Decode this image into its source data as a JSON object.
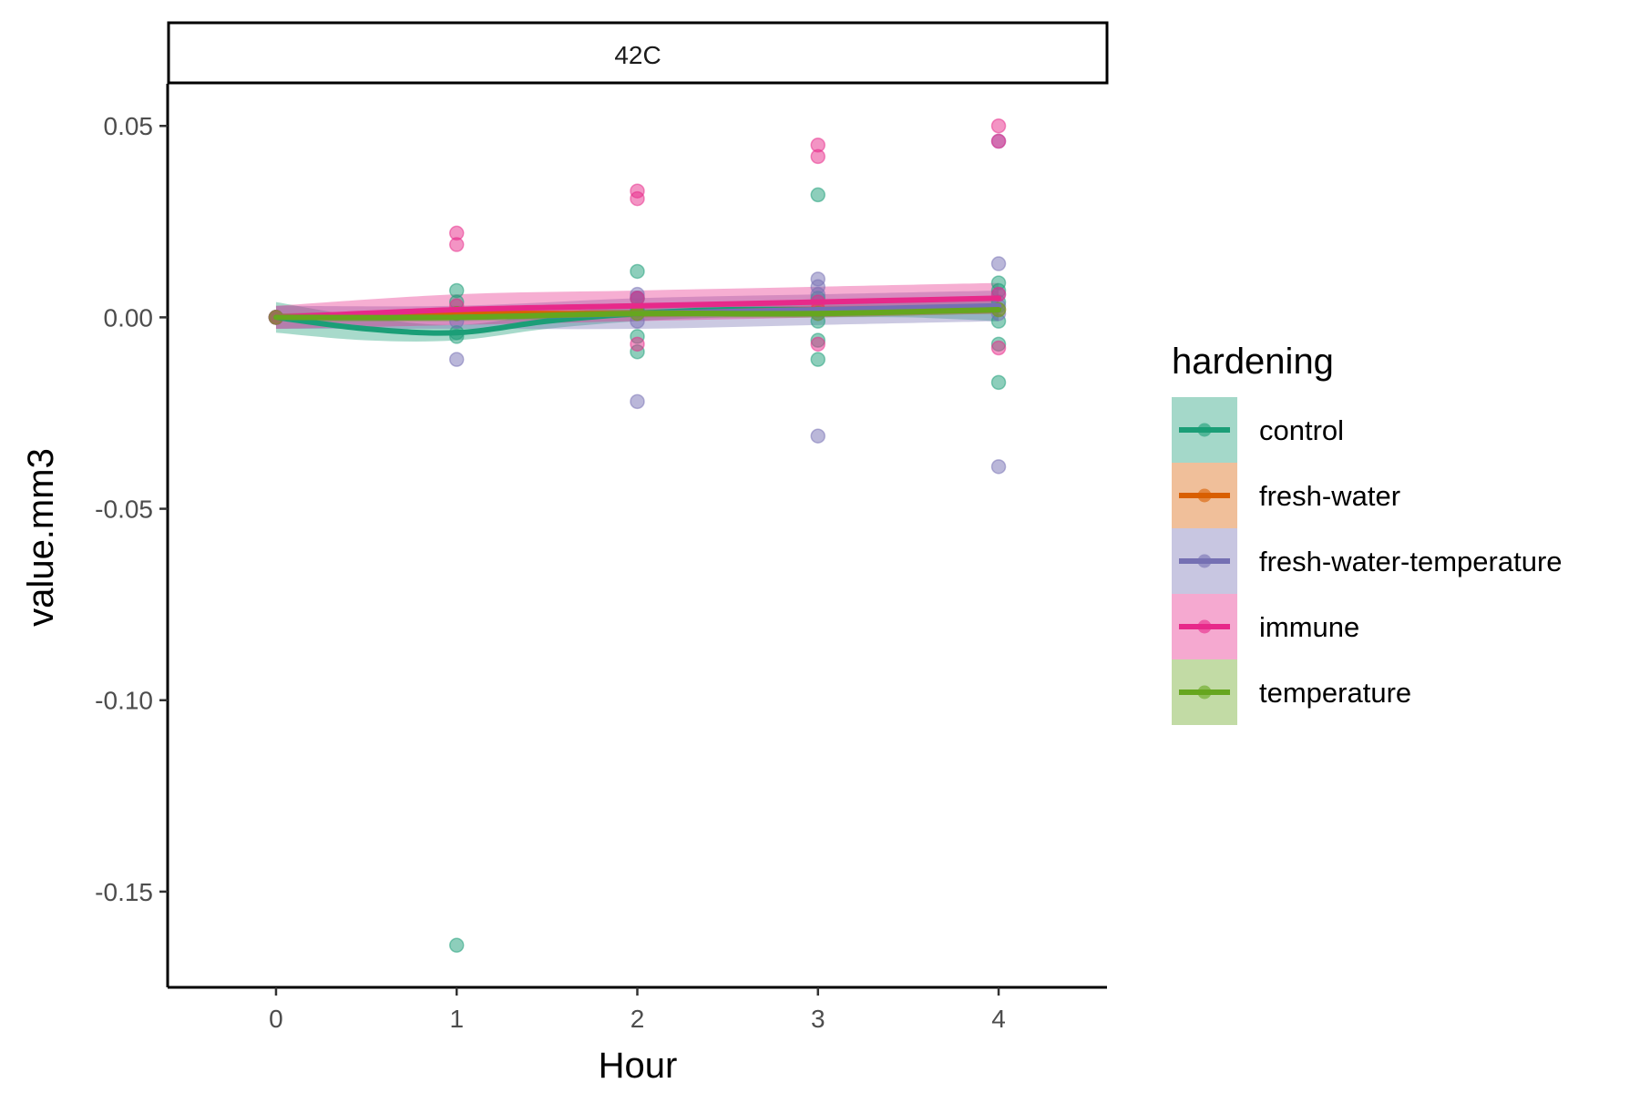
{
  "chart_data": {
    "type": "scatter",
    "facet_label": "42C",
    "xlabel": "Hour",
    "ylabel": "value.mm3",
    "xlim": [
      -0.6,
      4.6
    ],
    "ylim": [
      -0.175,
      0.061
    ],
    "x_ticks": [
      0,
      1,
      2,
      3,
      4
    ],
    "x_tick_labels": [
      "0",
      "1",
      "2",
      "3",
      "4"
    ],
    "y_ticks": [
      0.05,
      0.0,
      -0.05,
      -0.1,
      -0.15
    ],
    "y_tick_labels": [
      "0.05",
      "0.00",
      "-0.05",
      "-0.10",
      "-0.15"
    ],
    "grid": false,
    "legend": {
      "title": "hardening",
      "placement": "right"
    },
    "series": [
      {
        "name": "control",
        "color": "#1B9E77",
        "points": [
          [
            0,
            0.0
          ],
          [
            0,
            0.0
          ],
          [
            0,
            0.0
          ],
          [
            0,
            0.0
          ],
          [
            1,
            0.007
          ],
          [
            1,
            -0.004
          ],
          [
            1,
            -0.005
          ],
          [
            1,
            0.004
          ],
          [
            1,
            -0.164
          ],
          [
            2,
            0.012
          ],
          [
            2,
            -0.005
          ],
          [
            2,
            -0.009
          ],
          [
            2,
            0.005
          ],
          [
            2,
            0.002
          ],
          [
            3,
            0.032
          ],
          [
            3,
            -0.006
          ],
          [
            3,
            -0.011
          ],
          [
            3,
            -0.001
          ],
          [
            3,
            0.005
          ],
          [
            4,
            0.009
          ],
          [
            4,
            0.007
          ],
          [
            4,
            -0.007
          ],
          [
            4,
            -0.017
          ],
          [
            4,
            -0.001
          ],
          [
            4,
            0.004
          ]
        ],
        "smooth": [
          [
            0,
            0.0
          ],
          [
            0.5,
            -0.003
          ],
          [
            1,
            -0.004
          ],
          [
            1.5,
            -0.001
          ],
          [
            2,
            0.001
          ],
          [
            2.5,
            0.002
          ],
          [
            3,
            0.002
          ],
          [
            3.5,
            0.002
          ],
          [
            4,
            0.002
          ]
        ],
        "band_halfwidth": [
          0.004,
          0.003,
          0.002,
          0.002,
          0.002,
          0.002,
          0.002,
          0.002,
          0.003
        ]
      },
      {
        "name": "fresh-water",
        "color": "#D95F02",
        "points": [
          [
            0,
            0.0
          ],
          [
            1,
            0.001
          ],
          [
            2,
            0.001
          ],
          [
            3,
            0.002
          ],
          [
            4,
            0.002
          ]
        ],
        "smooth": [
          [
            0,
            0.0
          ],
          [
            1,
            0.001
          ],
          [
            2,
            0.001
          ],
          [
            3,
            0.002
          ],
          [
            4,
            0.002
          ]
        ],
        "band_halfwidth": [
          0.001,
          0.001,
          0.001,
          0.001,
          0.001
        ]
      },
      {
        "name": "fresh-water-temperature",
        "color": "#7570B3",
        "points": [
          [
            0,
            0.0
          ],
          [
            0,
            0.0
          ],
          [
            0,
            0.0
          ],
          [
            1,
            -0.011
          ],
          [
            1,
            0.001
          ],
          [
            1,
            -0.001
          ],
          [
            2,
            -0.022
          ],
          [
            2,
            0.006
          ],
          [
            2,
            -0.001
          ],
          [
            2,
            0.005
          ],
          [
            3,
            -0.031
          ],
          [
            3,
            0.01
          ],
          [
            3,
            0.008
          ],
          [
            3,
            0.006
          ],
          [
            3,
            0.001
          ],
          [
            4,
            -0.039
          ],
          [
            4,
            0.014
          ],
          [
            4,
            0.046
          ],
          [
            4,
            0.006
          ],
          [
            4,
            0.001
          ],
          [
            4,
            0.003
          ]
        ],
        "smooth": [
          [
            0,
            0.0
          ],
          [
            1,
            0.0
          ],
          [
            2,
            0.001
          ],
          [
            3,
            0.002
          ],
          [
            4,
            0.003
          ]
        ],
        "band_halfwidth": [
          0.003,
          0.003,
          0.004,
          0.004,
          0.004
        ]
      },
      {
        "name": "immune",
        "color": "#E7298A",
        "points": [
          [
            0,
            0.0
          ],
          [
            0,
            0.0
          ],
          [
            1,
            0.022
          ],
          [
            1,
            0.019
          ],
          [
            1,
            0.003
          ],
          [
            2,
            0.033
          ],
          [
            2,
            0.031
          ],
          [
            2,
            -0.007
          ],
          [
            2,
            0.005
          ],
          [
            3,
            0.045
          ],
          [
            3,
            0.042
          ],
          [
            3,
            -0.007
          ],
          [
            3,
            0.004
          ],
          [
            4,
            0.05
          ],
          [
            4,
            0.046
          ],
          [
            4,
            -0.008
          ],
          [
            4,
            0.006
          ]
        ],
        "smooth": [
          [
            0,
            0.0
          ],
          [
            1,
            0.002
          ],
          [
            2,
            0.003
          ],
          [
            3,
            0.004
          ],
          [
            4,
            0.005
          ]
        ],
        "band_halfwidth": [
          0.003,
          0.004,
          0.004,
          0.004,
          0.004
        ]
      },
      {
        "name": "temperature",
        "color": "#66A61E",
        "points": [
          [
            0,
            0.0
          ],
          [
            1,
            0.001
          ],
          [
            2,
            0.001
          ],
          [
            3,
            0.001
          ],
          [
            4,
            0.002
          ]
        ],
        "smooth": [
          [
            0,
            0.0
          ],
          [
            1,
            0.0
          ],
          [
            2,
            0.001
          ],
          [
            3,
            0.001
          ],
          [
            4,
            0.002
          ]
        ],
        "band_halfwidth": [
          0.001,
          0.001,
          0.001,
          0.001,
          0.001
        ]
      }
    ]
  }
}
